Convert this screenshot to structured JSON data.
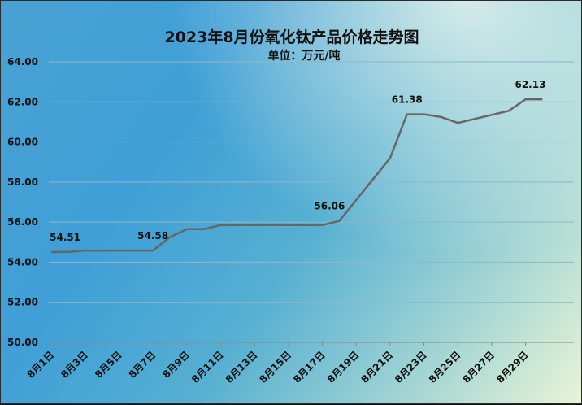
{
  "chart_data": {
    "type": "line",
    "title": "2023年8月份氧化钛产品价格走势图",
    "subtitle": "单位：万元/吨",
    "xlabel": "",
    "ylabel": "",
    "ylim": [
      50,
      64
    ],
    "yticks": [
      "50.00",
      "52.00",
      "54.00",
      "56.00",
      "58.00",
      "60.00",
      "62.00",
      "64.00"
    ],
    "ytick_values": [
      50,
      52,
      54,
      56,
      58,
      60,
      62,
      64
    ],
    "xtick_labels": [
      "8月1日",
      "8月3日",
      "8月5日",
      "8月7日",
      "8月9日",
      "8月11日",
      "8月13日",
      "8月15日",
      "8月17日",
      "8月19日",
      "8月21日",
      "8月23日",
      "8月25日",
      "8月27日",
      "8月29日"
    ],
    "grid": true,
    "line_color": "#666666",
    "series": [
      {
        "values": [
          {
            "day": 1,
            "price": 54.51
          },
          {
            "day": 2,
            "price": 54.51
          },
          {
            "day": 3,
            "price": 54.58
          },
          {
            "day": 4,
            "price": 54.58
          },
          {
            "day": 5,
            "price": 54.58
          },
          {
            "day": 6,
            "price": 54.58
          },
          {
            "day": 7,
            "price": 54.58
          },
          {
            "day": 8,
            "price": 55.25
          },
          {
            "day": 9,
            "price": 55.65
          },
          {
            "day": 10,
            "price": 55.65
          },
          {
            "day": 11,
            "price": 55.85
          },
          {
            "day": 12,
            "price": 55.85
          },
          {
            "day": 13,
            "price": 55.85
          },
          {
            "day": 14,
            "price": 55.85
          },
          {
            "day": 15,
            "price": 55.85
          },
          {
            "day": 16,
            "price": 55.85
          },
          {
            "day": 17,
            "price": 55.85
          },
          {
            "day": 18,
            "price": 56.06
          },
          {
            "day": 19,
            "price": 57.1
          },
          {
            "day": 20,
            "price": 58.15
          },
          {
            "day": 21,
            "price": 59.2
          },
          {
            "day": 22,
            "price": 61.38
          },
          {
            "day": 23,
            "price": 61.38
          },
          {
            "day": 24,
            "price": 61.25
          },
          {
            "day": 25,
            "price": 60.95
          },
          {
            "day": 26,
            "price": 61.15
          },
          {
            "day": 27,
            "price": 61.35
          },
          {
            "day": 28,
            "price": 61.55
          },
          {
            "day": 29,
            "price": 62.13
          },
          {
            "day": 30,
            "price": 62.13
          }
        ]
      }
    ],
    "data_labels": [
      {
        "text": "54.51",
        "day": 1,
        "price": 54.51
      },
      {
        "text": "54.58",
        "day": 7,
        "price": 54.58
      },
      {
        "text": "56.06",
        "day": 18,
        "price": 56.06
      },
      {
        "text": "61.38",
        "day": 22,
        "price": 61.38
      },
      {
        "text": "62.13",
        "day": 30,
        "price": 62.13
      }
    ]
  }
}
